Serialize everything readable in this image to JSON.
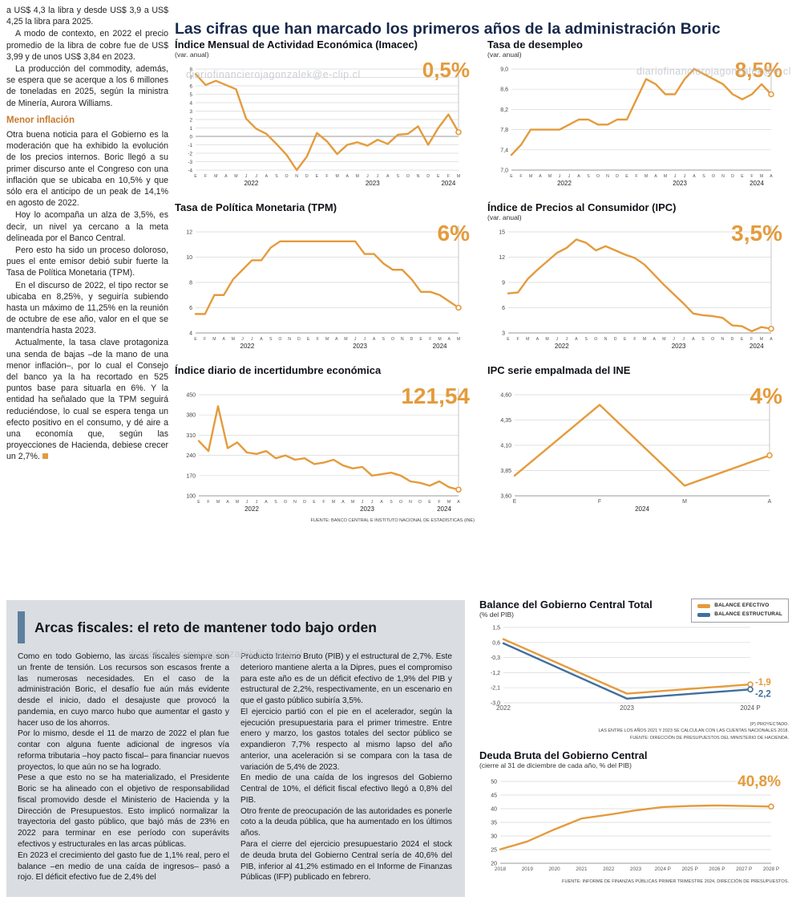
{
  "watermark": "diariofinancierojagonzalek@e-clip.cl",
  "colors": {
    "orange": "#E49B3C",
    "blue_line": "#3F6F9F",
    "navy": "#17294A",
    "subhead": "#C67A2E",
    "bar_blue": "#5E7F9E",
    "graybox": "#DADDE1",
    "watermark": "#BBC0C8"
  },
  "main_title": "Las cifras que han marcado los primeros años de la administración Boric",
  "left_column": {
    "paragraphs": [
      "a US$ 4,3 la libra y desde US$ 3,9 a US$ 4,25 la libra para 2025.",
      "A modo de contexto, en 2022 el precio promedio de la libra de cobre fue de US$ 3,99 y de unos US$ 3,84 en 2023.",
      "La producción del commodity, además, se espera que se acerque a los 6 millones de toneladas en 2025, según la ministra de Minería, Aurora Williams."
    ],
    "subhead": "Menor inflación",
    "paragraphs2": [
      "Otra buena noticia para el Gobierno es la moderación que ha exhibido la evolución de los precios internos. Boric llegó a su primer discurso ante el Congreso con una inflación que se ubicaba en 10,5% y que sólo era el anticipo de un peak de 14,1% en agosto de 2022.",
      "Hoy lo acompaña un alza de 3,5%, es decir, un nivel ya cercano a la meta delineada por el Banco Central.",
      "Pero esto ha sido un proceso doloroso, pues el ente emisor debió subir fuerte la Tasa de Política Monetaria (TPM).",
      "En el discurso de 2022, el tipo rector se ubicaba en 8,25%, y seguiría subiendo hasta un máximo de 11,25% en la reunión de octubre de ese año, valor en el que se mantendría hasta 2023.",
      "Actualmente, la tasa clave protagoniza una senda de bajas –de la mano de una menor inflación–, por lo cual el Consejo del banco ya la ha recortado en 525 puntos base para situarla en 6%. Y la entidad ha señalado que la TPM seguirá reduciéndose, lo cual se espera tenga un efecto positivo en el consumo, y dé aire a una economía que, según las proyecciones de Hacienda, debiese crecer un 2,7%."
    ]
  },
  "arcas": {
    "heading": "Arcas fiscales: el reto de mantener todo bajo orden",
    "col1": [
      "Como en todo Gobierno, las arcas fiscales siempre son un frente de tensión. Los recursos son escasos frente a las numerosas necesidades. En el caso de la administración Boric, el desafío fue aún más evidente desde el inicio, dado el desajuste que provocó la pandemia, en cuyo marco hubo que aumentar el gasto y hacer uso de los ahorros.",
      "Por lo mismo, desde el 11 de marzo de 2022 el plan fue contar con alguna fuente adicional de ingresos vía reforma tributaria –hoy pacto fiscal– para financiar nuevos proyectos, lo que aún no se ha logrado.",
      "Pese a que esto no se ha materializado, el Presidente Boric se ha alineado con el objetivo de responsabilidad fiscal promovido desde el Ministerio de Hacienda y la Dirección de Presupuestos. Esto implicó normalizar la trayectoria del gasto público, que bajó más de 23% en 2022 para terminar en ese período con superávits efectivos y estructurales en las arcas públicas.",
      "En 2023 el crecimiento del gasto fue de 1,1% real, pero el balance –en medio de una caída de ingresos– pasó a rojo. El déficit efectivo fue de 2,4% del"
    ],
    "col2": [
      "Producto Interno Bruto (PIB) y el estructural de 2,7%. Este deterioro mantiene alerta a la Dipres, pues el compromiso para este año es de un déficit efectivo de 1,9% del PIB y estructural de 2,2%, respectivamente, en un escenario en que el gasto público subiría 3,5%.",
      "El ejercicio partió con el pie en el acelerador, según la ejecución presupuestaria para el primer trimestre. Entre enero y marzo, los gastos totales del sector público se expandieron 7,7% respecto al mismo lapso del año anterior, una aceleración si se compara con la tasa de variación de 5,4% de 2023.",
      "En medio de una caída de los ingresos del Gobierno Central de 10%, el déficit fiscal efectivo llegó a 0,8% del PIB.",
      "Otro frente de preocupación de las autoridades es ponerle coto a la deuda pública, que ha aumentado en los últimos años.",
      "Para el cierre del ejercicio presupuestario 2024 el stock de deuda bruta del Gobierno Central sería de 40,6% del PIB, inferior al 41,2% estimado en el Informe de Finanzas Públicas (IFP) publicado en febrero."
    ]
  },
  "chart_data": [
    {
      "type": "line",
      "title": "Índice Mensual de Actividad Económica (Imacec)",
      "subtitle": "(var. anual)",
      "value_label": "0,5%",
      "guide": true,
      "margins": {
        "l": 26,
        "r": 14,
        "t": 10,
        "b": 22
      },
      "y_font": 6.3,
      "x_font": 5.2,
      "ytick_values": [
        8,
        7,
        6,
        5,
        4,
        3,
        2,
        1,
        0,
        -1,
        -2,
        -3,
        -4
      ],
      "ytick_labels": [
        "8",
        "7",
        "6",
        "5",
        "4",
        "3",
        "2",
        "1",
        "0",
        "-1",
        "-2",
        "-3",
        "-4"
      ],
      "x_labels": [
        "E",
        "F",
        "M",
        "A",
        "M",
        "J",
        "J",
        "A",
        "S",
        "O",
        "N",
        "D",
        "E",
        "F",
        "M",
        "A",
        "M",
        "J",
        "J",
        "A",
        "S",
        "O",
        "N",
        "D",
        "E",
        "F",
        "M"
      ],
      "years": [
        {
          "label": "2022",
          "span": 12
        },
        {
          "label": "2023",
          "span": 12
        },
        {
          "label": "2024",
          "span": 3
        }
      ],
      "values": [
        7.4,
        6.1,
        6.6,
        6.1,
        5.6,
        2.1,
        0.9,
        0.3,
        -0.9,
        -2.2,
        -4.0,
        -2.4,
        0.4,
        -0.6,
        -2.1,
        -1.0,
        -0.7,
        -1.1,
        -0.4,
        -0.9,
        0.2,
        0.3,
        1.2,
        -1.0,
        1.0,
        2.6,
        0.5
      ]
    },
    {
      "type": "line",
      "title": "Tasa de desempleo",
      "subtitle": "(var. anual)",
      "value_label": "8,5%",
      "guide": true,
      "margins": {
        "l": 30,
        "r": 14,
        "t": 10,
        "b": 22
      },
      "y_font": 7,
      "x_font": 5.2,
      "ytick_values": [
        9.0,
        8.6,
        8.2,
        7.8,
        7.4,
        7.0
      ],
      "ytick_labels": [
        "9,0",
        "8,6",
        "8,2",
        "7,8",
        "7,4",
        "7,0"
      ],
      "x_labels": [
        "E",
        "F",
        "M",
        "A",
        "M",
        "J",
        "J",
        "A",
        "S",
        "O",
        "N",
        "D",
        "E",
        "F",
        "M",
        "A",
        "M",
        "J",
        "J",
        "A",
        "S",
        "O",
        "N",
        "D",
        "E",
        "F",
        "M",
        "A"
      ],
      "years": [
        {
          "label": "2022",
          "span": 12
        },
        {
          "label": "2023",
          "span": 12
        },
        {
          "label": "2024",
          "span": 4
        }
      ],
      "values": [
        7.3,
        7.5,
        7.8,
        7.8,
        7.8,
        7.8,
        7.9,
        8.0,
        8.0,
        7.9,
        7.9,
        8.0,
        8.0,
        8.4,
        8.8,
        8.7,
        8.5,
        8.5,
        8.8,
        9.0,
        8.9,
        8.8,
        8.7,
        8.5,
        8.4,
        8.5,
        8.7,
        8.5
      ]
    },
    {
      "type": "line",
      "title": "Tasa de Política Monetaria (TPM)",
      "subtitle": "",
      "value_label": "6%",
      "guide": true,
      "margins": {
        "l": 26,
        "r": 14,
        "t": 10,
        "b": 22
      },
      "y_font": 7,
      "x_font": 5.2,
      "ytick_values": [
        12,
        10,
        8,
        6,
        4
      ],
      "ytick_labels": [
        "12",
        "10",
        "8",
        "6",
        "4"
      ],
      "x_labels": [
        "E",
        "F",
        "M",
        "A",
        "M",
        "J",
        "J",
        "A",
        "S",
        "O",
        "N",
        "D",
        "E",
        "F",
        "M",
        "A",
        "M",
        "J",
        "J",
        "A",
        "S",
        "O",
        "N",
        "D",
        "E",
        "F",
        "M",
        "A",
        "M"
      ],
      "years": [
        {
          "label": "2022",
          "span": 12
        },
        {
          "label": "2023",
          "span": 12
        },
        {
          "label": "2024",
          "span": 5
        }
      ],
      "values": [
        5.5,
        5.5,
        7.0,
        7.0,
        8.25,
        9.0,
        9.75,
        9.75,
        10.75,
        11.25,
        11.25,
        11.25,
        11.25,
        11.25,
        11.25,
        11.25,
        11.25,
        11.25,
        10.25,
        10.25,
        9.5,
        9.0,
        9.0,
        8.25,
        7.25,
        7.25,
        7.0,
        6.5,
        6.0
      ]
    },
    {
      "type": "line",
      "title": "Índice de Precios al Consumidor (IPC)",
      "subtitle": "(var. anual)",
      "value_label": "3,5%",
      "guide": true,
      "margins": {
        "l": 26,
        "r": 14,
        "t": 10,
        "b": 22
      },
      "y_font": 7,
      "x_font": 5.2,
      "ytick_values": [
        15,
        12,
        9,
        6,
        3
      ],
      "ytick_labels": [
        "15",
        "12",
        "9",
        "6",
        "3"
      ],
      "x_labels": [
        "E",
        "F",
        "M",
        "A",
        "M",
        "J",
        "J",
        "A",
        "S",
        "O",
        "N",
        "D",
        "E",
        "F",
        "M",
        "A",
        "M",
        "J",
        "J",
        "A",
        "S",
        "O",
        "N",
        "D",
        "E",
        "F",
        "M",
        "A"
      ],
      "years": [
        {
          "label": "2022",
          "span": 12
        },
        {
          "label": "2023",
          "span": 12
        },
        {
          "label": "2024",
          "span": 4
        }
      ],
      "values": [
        7.7,
        7.8,
        9.4,
        10.5,
        11.5,
        12.5,
        13.1,
        14.1,
        13.7,
        12.8,
        13.3,
        12.8,
        12.3,
        11.9,
        11.1,
        9.9,
        8.7,
        7.6,
        6.5,
        5.3,
        5.1,
        5.0,
        4.8,
        3.9,
        3.8,
        3.2,
        3.7,
        3.5
      ]
    },
    {
      "type": "line",
      "title": "Índice diario de incertidumbre económica",
      "subtitle": "",
      "value_label": "121,54",
      "guide": true,
      "margins": {
        "l": 30,
        "r": 14,
        "t": 10,
        "b": 22
      },
      "y_font": 7,
      "x_font": 5.2,
      "ytick_values": [
        450,
        380,
        310,
        240,
        170,
        100
      ],
      "ytick_labels": [
        "450",
        "380",
        "310",
        "240",
        "170",
        "100"
      ],
      "x_labels": [
        "E",
        "F",
        "M",
        "A",
        "M",
        "J",
        "J",
        "A",
        "S",
        "O",
        "N",
        "D",
        "E",
        "F",
        "M",
        "A",
        "M",
        "J",
        "J",
        "A",
        "S",
        "O",
        "N",
        "D",
        "E",
        "F",
        "M",
        "A"
      ],
      "years": [
        {
          "label": "2022",
          "span": 12
        },
        {
          "label": "2023",
          "span": 12
        },
        {
          "label": "2024",
          "span": 4
        }
      ],
      "values": [
        290,
        255,
        410,
        265,
        285,
        250,
        245,
        255,
        230,
        240,
        225,
        230,
        210,
        215,
        225,
        205,
        195,
        200,
        170,
        175,
        180,
        170,
        150,
        145,
        135,
        150,
        130,
        121.54
      ],
      "source": "FUENTE: BANCO CENTRAL E INSTITUTO NACIONAL DE ESTADÍSTICAS (INE)"
    },
    {
      "type": "line",
      "title": "IPC serie empalmada del INE",
      "subtitle": "",
      "value_label": "4%",
      "guide": true,
      "margins": {
        "l": 34,
        "r": 16,
        "t": 10,
        "b": 22
      },
      "y_font": 7,
      "x_font": 7,
      "ytick_values": [
        4.6,
        4.35,
        4.1,
        3.85,
        3.6
      ],
      "ytick_labels": [
        "4,60",
        "4,35",
        "4,10",
        "3,85",
        "3,60"
      ],
      "x_labels": [
        "E",
        "F",
        "M",
        "A"
      ],
      "years": [
        {
          "label": "2024",
          "span": 4
        }
      ],
      "values": [
        3.8,
        4.5,
        3.7,
        4.0
      ]
    },
    {
      "type": "line",
      "title": "Balance del Gobierno Central Total",
      "subtitle": "(% del PIB)",
      "guide": false,
      "margins": {
        "l": 30,
        "r": 42,
        "t": 8,
        "b": 16
      },
      "y_font": 7,
      "x_font": 8,
      "ytick_values": [
        1.5,
        0.6,
        -0.3,
        -1.2,
        -2.1,
        -3.0
      ],
      "ytick_labels": [
        "1,5",
        "0,6",
        "-0,3",
        "-1,2",
        "-2,1",
        "-3,0"
      ],
      "x_labels": [
        "2022",
        "2023",
        "2024 P"
      ],
      "series": [
        {
          "name": "BALANCE EFECTIVO",
          "color": "#E49B3C",
          "values": [
            0.8,
            -2.45,
            -1.9
          ],
          "end_label": "-1,9",
          "end_dy": -2
        },
        {
          "name": "BALANCE ESTRUCTURAL",
          "color": "#3F6F9F",
          "values": [
            0.55,
            -2.75,
            -2.2
          ],
          "end_label": "-2,2",
          "end_dy": 6
        }
      ],
      "legend": [
        {
          "label": "BALANCE EFECTIVO",
          "color": "#E49B3C"
        },
        {
          "label": "BALANCE ESTRUCTURAL",
          "color": "#3F6F9F"
        }
      ],
      "notes": [
        "(P) PROYECTADO.",
        "LAS ENTRE LOS AÑOS 2021 Y 2023 SE CALCULAN  CON LAS CUENTAS NACIONALES 2018.",
        "FUENTE: DIRECCIÓN DE PRESUPUESTOS DEL MINISTERIO DE HACIENDA."
      ]
    },
    {
      "type": "line",
      "title": "Deuda Bruta del Gobierno Central",
      "subtitle": "(cierre al 31 de diciembre de cada año, % del PIB)",
      "value_label": "40,8%",
      "guide": false,
      "margins": {
        "l": 26,
        "r": 16,
        "t": 12,
        "b": 14
      },
      "y_font": 7,
      "x_font": 6.4,
      "ytick_values": [
        50,
        45,
        40,
        35,
        30,
        25,
        20
      ],
      "ytick_labels": [
        "50",
        "45",
        "40",
        "35",
        "30",
        "25",
        "20"
      ],
      "x_labels": [
        "2018",
        "2019",
        "2020",
        "2021",
        "2022",
        "2023",
        "2024 P",
        "2025 P",
        "2026 P",
        "2027 P",
        "2028 P"
      ],
      "values": [
        25.1,
        28.0,
        32.4,
        36.4,
        37.8,
        39.4,
        40.6,
        41.0,
        41.2,
        41.0,
        40.8
      ],
      "source": "FUENTE: INFORME DE FINANZAS PÚBLICAS PRIMER TRIMESTRE 2024, DIRECCIÓN DE PRESUPUESTOS."
    }
  ]
}
